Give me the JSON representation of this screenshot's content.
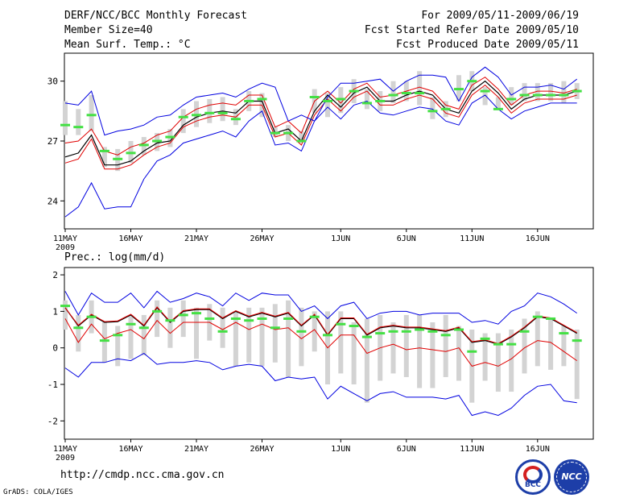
{
  "header": {
    "title": "DERF/NCC/BCC Monthly Forecast",
    "member_size": "Member Size=40",
    "variable": "Mean Surf. Temp.: °C",
    "period": "For 2009/05/11-2009/06/19",
    "started": "Fcst Started Refer Date 2009/05/10",
    "produced": "Fcst Produced Date 2009/05/11"
  },
  "footer": {
    "url": "http://cmdp.ncc.cma.gov.cn",
    "credit": "GrADS: COLA/IGES",
    "logo_left": "BCC",
    "logo_right": "NCC"
  },
  "colors": {
    "box": "#d3d3d3",
    "median": "#44e044",
    "mean": "#000000",
    "low": "#e00000",
    "envelope": "#0000e0",
    "axis": "#000000"
  },
  "chart_data": [
    {
      "type": "line",
      "title": "",
      "ylabel": "Mean Surf. Temp.: °C",
      "ylim": [
        22.6,
        31.4
      ],
      "yticks": [
        24,
        27,
        30
      ],
      "x": [
        1,
        2,
        3,
        4,
        5,
        6,
        7,
        8,
        9,
        10,
        11,
        12,
        13,
        14,
        15,
        16,
        17,
        18,
        19,
        20,
        21,
        22,
        23,
        24,
        25,
        26,
        27,
        28,
        29,
        30,
        31,
        32,
        33,
        34,
        35,
        36,
        37,
        38,
        39,
        40
      ],
      "xticks": [
        {
          "x": 1,
          "label": "11MAY",
          "sub": "2009"
        },
        {
          "x": 6,
          "label": "16MAY"
        },
        {
          "x": 11,
          "label": "21MAY"
        },
        {
          "x": 16,
          "label": "26MAY"
        },
        {
          "x": 22,
          "label": "1JUN"
        },
        {
          "x": 27,
          "label": "6JUN"
        },
        {
          "x": 32,
          "label": "11JUN"
        },
        {
          "x": 37,
          "label": "16JUN"
        }
      ],
      "box_low": [
        27.3,
        27.3,
        27.5,
        25.7,
        25.5,
        25.9,
        26.3,
        26.5,
        26.7,
        27.4,
        27.7,
        27.9,
        28.0,
        27.8,
        28.5,
        28.2,
        27.2,
        27.0,
        26.9,
        28.4,
        28.2,
        28.4,
        28.9,
        28.6,
        28.5,
        28.9,
        29.0,
        28.8,
        28.1,
        28.2,
        29.0,
        29.5,
        28.8,
        28.6,
        28.8,
        29.0,
        29.0,
        29.0,
        28.9,
        29.1
      ],
      "box_high": [
        29.0,
        28.6,
        29.3,
        26.7,
        26.6,
        27.0,
        27.2,
        27.4,
        27.6,
        28.6,
        29.0,
        29.1,
        29.2,
        28.6,
        29.5,
        29.4,
        27.7,
        27.8,
        27.5,
        29.6,
        29.4,
        29.7,
        30.1,
        29.6,
        29.5,
        30.0,
        30.0,
        30.5,
        29.2,
        29.0,
        30.3,
        30.5,
        29.7,
        29.2,
        29.7,
        29.9,
        29.9,
        29.9,
        30.0,
        29.9
      ],
      "series": [
        {
          "name": "median",
          "values": [
            27.8,
            27.7,
            28.3,
            26.5,
            26.1,
            26.4,
            26.8,
            27.0,
            27.2,
            28.2,
            28.3,
            28.4,
            28.4,
            28.1,
            29.0,
            29.1,
            27.4,
            27.4,
            27.0,
            29.2,
            29.0,
            29.1,
            29.5,
            28.9,
            29.0,
            29.3,
            29.4,
            29.4,
            28.5,
            28.6,
            29.6,
            30.0,
            29.5,
            28.6,
            29.1,
            29.3,
            29.3,
            29.3,
            29.3,
            29.5
          ]
        },
        {
          "name": "mean",
          "values": [
            26.2,
            26.4,
            27.3,
            25.8,
            25.8,
            26.0,
            26.5,
            26.9,
            27.0,
            27.8,
            28.2,
            28.4,
            28.5,
            28.4,
            29.0,
            29.0,
            27.4,
            27.6,
            27.0,
            28.5,
            29.3,
            28.7,
            29.4,
            29.7,
            29.0,
            29.0,
            29.3,
            29.5,
            29.3,
            28.6,
            28.4,
            29.5,
            30.0,
            29.4,
            28.6,
            29.1,
            29.3,
            29.3,
            29.3,
            29.5
          ]
        },
        {
          "name": "low",
          "values": [
            25.9,
            26.1,
            27.1,
            25.6,
            25.6,
            25.8,
            26.3,
            26.7,
            26.9,
            27.7,
            28.0,
            28.2,
            28.3,
            28.2,
            28.8,
            28.8,
            27.2,
            27.4,
            26.8,
            28.3,
            29.1,
            28.5,
            29.2,
            29.5,
            28.8,
            28.8,
            29.1,
            29.3,
            29.1,
            28.4,
            28.2,
            29.3,
            29.8,
            29.2,
            28.4,
            28.9,
            29.1,
            29.1,
            29.1,
            29.3
          ]
        },
        {
          "name": "high",
          "values": [
            26.9,
            27.0,
            27.6,
            26.5,
            26.3,
            26.7,
            26.9,
            27.3,
            27.5,
            28.2,
            28.6,
            28.8,
            28.9,
            28.8,
            29.3,
            29.3,
            27.7,
            28.0,
            27.4,
            29.0,
            29.5,
            28.9,
            29.6,
            29.9,
            29.2,
            29.3,
            29.5,
            29.7,
            29.5,
            28.8,
            28.6,
            29.8,
            30.2,
            29.6,
            28.8,
            29.3,
            29.5,
            29.5,
            29.4,
            29.6
          ]
        },
        {
          "name": "env_max",
          "values": [
            28.9,
            28.8,
            29.5,
            27.3,
            27.5,
            27.6,
            27.8,
            28.2,
            28.3,
            28.8,
            29.2,
            29.3,
            29.4,
            29.2,
            29.6,
            29.9,
            29.7,
            28.0,
            28.3,
            28.0,
            29.2,
            29.9,
            29.9,
            30.0,
            30.1,
            29.5,
            30.0,
            30.3,
            30.3,
            30.2,
            29.0,
            30.2,
            30.7,
            30.2,
            29.3,
            29.7,
            29.7,
            29.8,
            29.6,
            30.1
          ]
        },
        {
          "name": "env_min",
          "values": [
            23.2,
            23.7,
            24.9,
            23.6,
            23.7,
            23.7,
            25.1,
            26.0,
            26.3,
            26.9,
            27.1,
            27.3,
            27.5,
            27.2,
            28.0,
            28.5,
            26.8,
            26.9,
            26.5,
            28.0,
            28.7,
            28.1,
            28.8,
            29.0,
            28.4,
            28.3,
            28.5,
            28.7,
            28.6,
            28.0,
            27.8,
            28.9,
            29.3,
            28.6,
            28.1,
            28.5,
            28.7,
            28.9,
            28.9,
            28.9
          ]
        }
      ]
    },
    {
      "type": "line",
      "title": "",
      "ylabel": "Prec.: log(mm/d)",
      "ylim": [
        -2.5,
        2.2
      ],
      "yticks": [
        -2,
        -1,
        0,
        1,
        2
      ],
      "x": [
        1,
        2,
        3,
        4,
        5,
        6,
        7,
        8,
        9,
        10,
        11,
        12,
        13,
        14,
        15,
        16,
        17,
        18,
        19,
        20,
        21,
        22,
        23,
        24,
        25,
        26,
        27,
        28,
        29,
        30,
        31,
        32,
        33,
        34,
        35,
        36,
        37,
        38,
        39,
        40
      ],
      "xticks": [
        {
          "x": 1,
          "label": "11MAY",
          "sub": "2009"
        },
        {
          "x": 6,
          "label": "16MAY"
        },
        {
          "x": 11,
          "label": "21MAY"
        },
        {
          "x": 16,
          "label": "26MAY"
        },
        {
          "x": 22,
          "label": "1JUN"
        },
        {
          "x": 27,
          "label": "6JUN"
        },
        {
          "x": 32,
          "label": "11JUN"
        },
        {
          "x": 37,
          "label": "16JUN"
        }
      ],
      "box_low": [
        0.5,
        -0.1,
        0.4,
        -0.4,
        -0.5,
        -0.3,
        -0.2,
        0.3,
        0.0,
        0.3,
        -0.3,
        0.2,
        0.0,
        -0.5,
        -0.4,
        -0.5,
        -0.4,
        -0.8,
        -0.5,
        -0.1,
        -1.0,
        -0.7,
        -1.0,
        -1.5,
        -0.9,
        -0.7,
        -0.8,
        -1.1,
        -1.1,
        -0.8,
        -0.9,
        -1.5,
        -0.9,
        -1.2,
        -1.2,
        -0.7,
        -0.5,
        -0.6,
        -0.5,
        -1.4
      ],
      "box_high": [
        1.3,
        0.9,
        1.3,
        0.7,
        0.6,
        0.9,
        0.9,
        1.3,
        1.1,
        1.3,
        1.1,
        1.2,
        1.1,
        1.0,
        1.1,
        1.1,
        1.2,
        1.3,
        1.1,
        1.0,
        1.0,
        1.0,
        0.7,
        0.8,
        0.9,
        0.7,
        0.9,
        0.9,
        0.7,
        0.9,
        0.6,
        0.5,
        0.4,
        0.4,
        0.5,
        0.8,
        1.0,
        0.8,
        0.6,
        0.5
      ],
      "series": [
        {
          "name": "median",
          "values": [
            1.15,
            0.55,
            0.85,
            0.2,
            0.35,
            0.65,
            0.55,
            1.0,
            0.75,
            0.9,
            0.95,
            0.8,
            0.45,
            0.8,
            0.75,
            0.8,
            0.55,
            0.8,
            0.45,
            0.85,
            0.35,
            0.65,
            0.6,
            0.3,
            0.4,
            0.45,
            0.45,
            0.5,
            0.45,
            0.35,
            0.5,
            -0.1,
            0.25,
            0.1,
            0.1,
            0.45,
            0.85,
            0.8,
            0.4,
            0.2
          ]
        },
        {
          "name": "mean",
          "values": [
            1.1,
            0.6,
            0.9,
            0.7,
            0.72,
            0.9,
            0.6,
            1.1,
            0.7,
            1.0,
            1.05,
            1.05,
            0.8,
            1.0,
            0.85,
            0.95,
            0.85,
            0.95,
            0.6,
            0.9,
            0.35,
            0.8,
            0.8,
            0.35,
            0.55,
            0.6,
            0.55,
            0.55,
            0.5,
            0.45,
            0.55,
            0.15,
            0.2,
            0.1,
            0.3,
            0.55,
            0.85,
            0.8,
            0.6,
            0.4
          ]
        },
        {
          "name": "low",
          "values": [
            0.8,
            0.15,
            0.65,
            0.25,
            0.4,
            0.5,
            0.25,
            0.75,
            0.4,
            0.7,
            0.7,
            0.7,
            0.5,
            0.7,
            0.5,
            0.65,
            0.5,
            0.55,
            0.25,
            0.5,
            0.0,
            0.35,
            0.35,
            -0.15,
            0.0,
            0.1,
            -0.05,
            0.0,
            -0.05,
            -0.1,
            0.0,
            -0.5,
            -0.4,
            -0.5,
            -0.3,
            0.0,
            0.2,
            0.15,
            -0.1,
            -0.35
          ]
        },
        {
          "name": "high",
          "values": [
            1.1,
            0.62,
            0.92,
            0.72,
            0.74,
            0.92,
            0.62,
            1.12,
            0.72,
            1.02,
            1.07,
            1.07,
            0.82,
            1.02,
            0.87,
            0.97,
            0.87,
            0.97,
            0.62,
            0.92,
            0.37,
            0.82,
            0.82,
            0.37,
            0.57,
            0.62,
            0.57,
            0.57,
            0.52,
            0.47,
            0.57,
            0.17,
            0.22,
            0.12,
            0.32,
            0.57,
            0.87,
            0.82,
            0.62,
            0.42
          ]
        },
        {
          "name": "env_max",
          "values": [
            1.55,
            0.9,
            1.5,
            1.25,
            1.25,
            1.5,
            1.1,
            1.55,
            1.25,
            1.35,
            1.5,
            1.4,
            1.15,
            1.5,
            1.3,
            1.5,
            1.45,
            1.45,
            1.0,
            1.15,
            0.8,
            1.15,
            1.25,
            0.8,
            0.95,
            1.0,
            1.0,
            0.9,
            0.95,
            0.95,
            0.95,
            0.7,
            0.75,
            0.65,
            1.0,
            1.15,
            1.5,
            1.4,
            1.2,
            0.95
          ]
        },
        {
          "name": "env_min",
          "values": [
            -0.55,
            -0.8,
            -0.4,
            -0.4,
            -0.3,
            -0.35,
            -0.15,
            -0.45,
            -0.4,
            -0.4,
            -0.35,
            -0.4,
            -0.6,
            -0.5,
            -0.45,
            -0.5,
            -0.9,
            -0.8,
            -0.85,
            -0.8,
            -1.4,
            -1.05,
            -1.25,
            -1.45,
            -1.25,
            -1.2,
            -1.35,
            -1.35,
            -1.35,
            -1.4,
            -1.3,
            -1.85,
            -1.75,
            -1.85,
            -1.65,
            -1.3,
            -1.05,
            -1.0,
            -1.45,
            -1.5
          ]
        }
      ]
    }
  ]
}
